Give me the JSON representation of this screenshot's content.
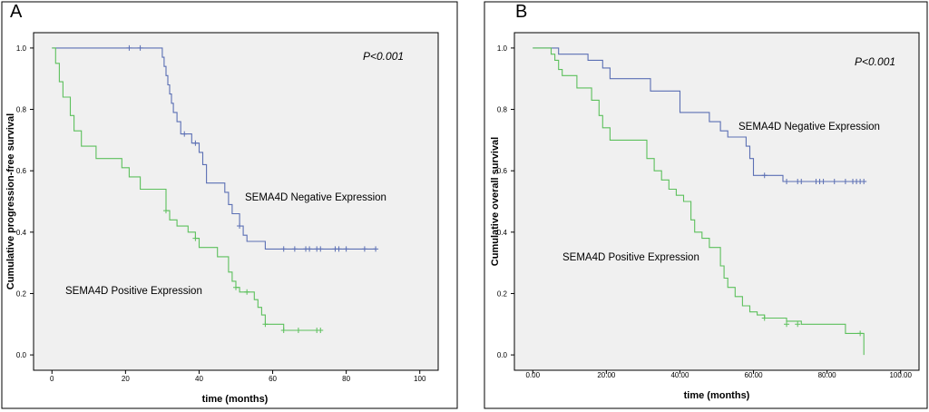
{
  "chart_data": [
    {
      "id": "A",
      "panel_label": "A",
      "type": "line",
      "subtype": "kaplan-meier",
      "title": "",
      "xlabel": "time  (months)",
      "ylabel": "Cumulative  progression-free survival",
      "xlim": [
        -5,
        105
      ],
      "ylim": [
        -0.05,
        1.05
      ],
      "xticks": [
        0,
        20,
        40,
        60,
        80,
        100
      ],
      "xtick_labels": [
        "0",
        "20",
        "40",
        "60",
        "80",
        "100"
      ],
      "yticks": [
        0.0,
        0.2,
        0.4,
        0.6,
        0.8,
        1.0
      ],
      "ytick_labels": [
        "0.0",
        "0.2",
        "0.4",
        "0.6",
        "0.8",
        "1.0"
      ],
      "p_value": "P<0.001",
      "series": [
        {
          "name": "SEMA4D  Negative  Expression",
          "color": "#5b6fb4",
          "steps": [
            [
              0,
              1.0
            ],
            [
              30,
              0.97
            ],
            [
              30.5,
              0.94
            ],
            [
              31,
              0.91
            ],
            [
              31.5,
              0.88
            ],
            [
              32,
              0.85
            ],
            [
              32.5,
              0.82
            ],
            [
              33,
              0.79
            ],
            [
              34,
              0.76
            ],
            [
              35,
              0.72
            ],
            [
              38,
              0.69
            ],
            [
              40,
              0.66
            ],
            [
              41,
              0.62
            ],
            [
              42,
              0.56
            ],
            [
              47,
              0.53
            ],
            [
              48,
              0.49
            ],
            [
              49,
              0.46
            ],
            [
              51,
              0.42
            ],
            [
              52,
              0.39
            ],
            [
              53,
              0.37
            ],
            [
              58,
              0.345
            ],
            [
              88,
              0.345
            ]
          ],
          "censor": [
            [
              21,
              1.0
            ],
            [
              24,
              1.0
            ],
            [
              36,
              0.72
            ],
            [
              39,
              0.69
            ],
            [
              51,
              0.42
            ],
            [
              63,
              0.345
            ],
            [
              66,
              0.345
            ],
            [
              69,
              0.345
            ],
            [
              70,
              0.345
            ],
            [
              72,
              0.345
            ],
            [
              73,
              0.345
            ],
            [
              77,
              0.345
            ],
            [
              78,
              0.345
            ],
            [
              80,
              0.345
            ],
            [
              85,
              0.345
            ],
            [
              88,
              0.345
            ]
          ]
        },
        {
          "name": "SEMA4D  Positive  Expression",
          "color": "#5cc05c",
          "steps": [
            [
              0,
              1.0
            ],
            [
              1,
              0.95
            ],
            [
              2,
              0.89
            ],
            [
              3,
              0.84
            ],
            [
              5,
              0.78
            ],
            [
              6,
              0.73
            ],
            [
              8,
              0.68
            ],
            [
              12,
              0.64
            ],
            [
              19,
              0.61
            ],
            [
              21,
              0.58
            ],
            [
              24,
              0.54
            ],
            [
              31,
              0.47
            ],
            [
              32,
              0.44
            ],
            [
              34,
              0.42
            ],
            [
              37,
              0.4
            ],
            [
              39,
              0.38
            ],
            [
              40,
              0.35
            ],
            [
              45,
              0.32
            ],
            [
              48,
              0.27
            ],
            [
              49,
              0.24
            ],
            [
              50,
              0.22
            ],
            [
              51,
              0.205
            ],
            [
              55,
              0.18
            ],
            [
              56,
              0.155
            ],
            [
              57,
              0.13
            ],
            [
              58,
              0.1
            ],
            [
              63,
              0.08
            ],
            [
              73,
              0.08
            ]
          ],
          "censor": [
            [
              31,
              0.47
            ],
            [
              39,
              0.38
            ],
            [
              50,
              0.22
            ],
            [
              53,
              0.205
            ],
            [
              58,
              0.1
            ],
            [
              63,
              0.08
            ],
            [
              67,
              0.08
            ],
            [
              72,
              0.08
            ],
            [
              73,
              0.08
            ]
          ]
        }
      ],
      "annotations": [
        {
          "text": "SEMA4D  Negative  Expression"
        },
        {
          "text": "SEMA4D  Positive  Expression"
        }
      ]
    },
    {
      "id": "B",
      "panel_label": "B",
      "type": "line",
      "subtype": "kaplan-meier",
      "title": "",
      "xlabel": "time  (months)",
      "ylabel": "Cumulative  overall  survival",
      "xlim": [
        -5,
        105
      ],
      "ylim": [
        -0.05,
        1.05
      ],
      "xticks": [
        0,
        20,
        40,
        60,
        80,
        100
      ],
      "xtick_labels": [
        "0.00",
        "20.00",
        "40.00",
        "60.00",
        "80.00",
        "100.00"
      ],
      "yticks": [
        0.0,
        0.2,
        0.4,
        0.6,
        0.8,
        1.0
      ],
      "ytick_labels": [
        "0.0",
        "0.2",
        "0.4",
        "0.6",
        "0.8",
        "1.0"
      ],
      "p_value": "P<0.001",
      "series": [
        {
          "name": "SEMA4D Negative Expression",
          "color": "#5b6fb4",
          "steps": [
            [
              0,
              1.0
            ],
            [
              7,
              0.98
            ],
            [
              15,
              0.96
            ],
            [
              19,
              0.935
            ],
            [
              21,
              0.9
            ],
            [
              32,
              0.86
            ],
            [
              40,
              0.79
            ],
            [
              48,
              0.76
            ],
            [
              51,
              0.73
            ],
            [
              53,
              0.71
            ],
            [
              58,
              0.68
            ],
            [
              59,
              0.64
            ],
            [
              60,
              0.585
            ],
            [
              68,
              0.565
            ],
            [
              90,
              0.565
            ]
          ],
          "censor": [
            [
              63,
              0.585
            ],
            [
              69,
              0.565
            ],
            [
              72,
              0.565
            ],
            [
              73,
              0.565
            ],
            [
              77,
              0.565
            ],
            [
              78,
              0.565
            ],
            [
              79,
              0.565
            ],
            [
              82,
              0.565
            ],
            [
              85,
              0.565
            ],
            [
              87,
              0.565
            ],
            [
              88,
              0.565
            ],
            [
              89,
              0.565
            ],
            [
              90,
              0.565
            ]
          ]
        },
        {
          "name": "SEMA4D Positive Expression",
          "color": "#5cc05c",
          "steps": [
            [
              0,
              1.0
            ],
            [
              5,
              0.98
            ],
            [
              6,
              0.96
            ],
            [
              7,
              0.93
            ],
            [
              8,
              0.91
            ],
            [
              12,
              0.87
            ],
            [
              16,
              0.83
            ],
            [
              18,
              0.78
            ],
            [
              19,
              0.74
            ],
            [
              21,
              0.7
            ],
            [
              31,
              0.64
            ],
            [
              33,
              0.6
            ],
            [
              35,
              0.57
            ],
            [
              37,
              0.54
            ],
            [
              39,
              0.52
            ],
            [
              41,
              0.5
            ],
            [
              43,
              0.44
            ],
            [
              44,
              0.4
            ],
            [
              46,
              0.38
            ],
            [
              48,
              0.35
            ],
            [
              51,
              0.29
            ],
            [
              52,
              0.25
            ],
            [
              53,
              0.22
            ],
            [
              55,
              0.19
            ],
            [
              57,
              0.16
            ],
            [
              59,
              0.14
            ],
            [
              61,
              0.13
            ],
            [
              63,
              0.12
            ],
            [
              69,
              0.11
            ],
            [
              73,
              0.1
            ],
            [
              85,
              0.07
            ],
            [
              90,
              0.07
            ],
            [
              90,
              0.0
            ]
          ],
          "censor": [
            [
              63,
              0.12
            ],
            [
              69,
              0.1
            ],
            [
              72,
              0.1
            ],
            [
              89,
              0.07
            ]
          ]
        }
      ],
      "annotations": [
        {
          "text": "SEMA4D Negative Expression"
        },
        {
          "text": "SEMA4D Positive Expression"
        }
      ]
    }
  ]
}
